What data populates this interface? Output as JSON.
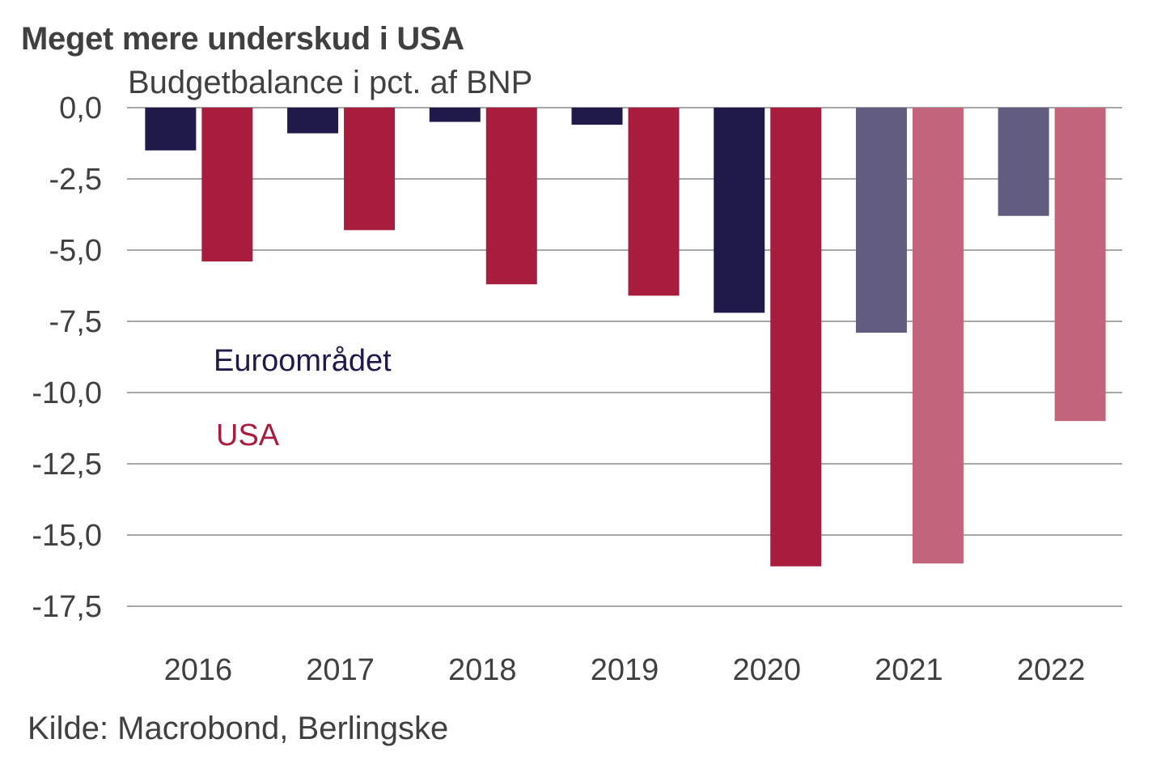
{
  "title": "Meget mere underskud i USA",
  "subtitle": "Budgetbalance i pct. af BNP",
  "source": "Kilde: Macrobond, Berlingske",
  "chart_data": {
    "type": "bar",
    "title": "Meget mere underskud i USA",
    "subtitle": "Budgetbalance i pct. af BNP",
    "xlabel": "",
    "ylabel": "Budgetbalance i pct. af BNP",
    "categories": [
      "2016",
      "2017",
      "2018",
      "2019",
      "2020",
      "2021",
      "2022"
    ],
    "ylim": [
      -17.5,
      0
    ],
    "yticks": [
      0,
      -2.5,
      -5,
      -7.5,
      -10,
      -12.5,
      -15,
      -17.5
    ],
    "ytick_labels": [
      "0,0",
      "-2,5",
      "-5,0",
      "-7,5",
      "-10,0",
      "-12,5",
      "-15,0",
      "-17,5"
    ],
    "grid": true,
    "projected_from": "2021",
    "series": [
      {
        "name": "Euroområdet",
        "color": "#1f1a4a",
        "projected_color": "#625d80",
        "values": [
          -1.5,
          -0.9,
          -0.5,
          -0.6,
          -7.2,
          -7.9,
          -3.8
        ]
      },
      {
        "name": "USA",
        "color": "#a81d3e",
        "projected_color": "#c2647a",
        "values": [
          -5.4,
          -4.3,
          -6.2,
          -6.6,
          -16.1,
          -16.0,
          -11.0
        ]
      }
    ],
    "legend": {
      "placement": "inside-left",
      "entries": [
        "Euroområdet",
        "USA"
      ]
    },
    "source": "Kilde: Macrobond, Berlingske"
  }
}
